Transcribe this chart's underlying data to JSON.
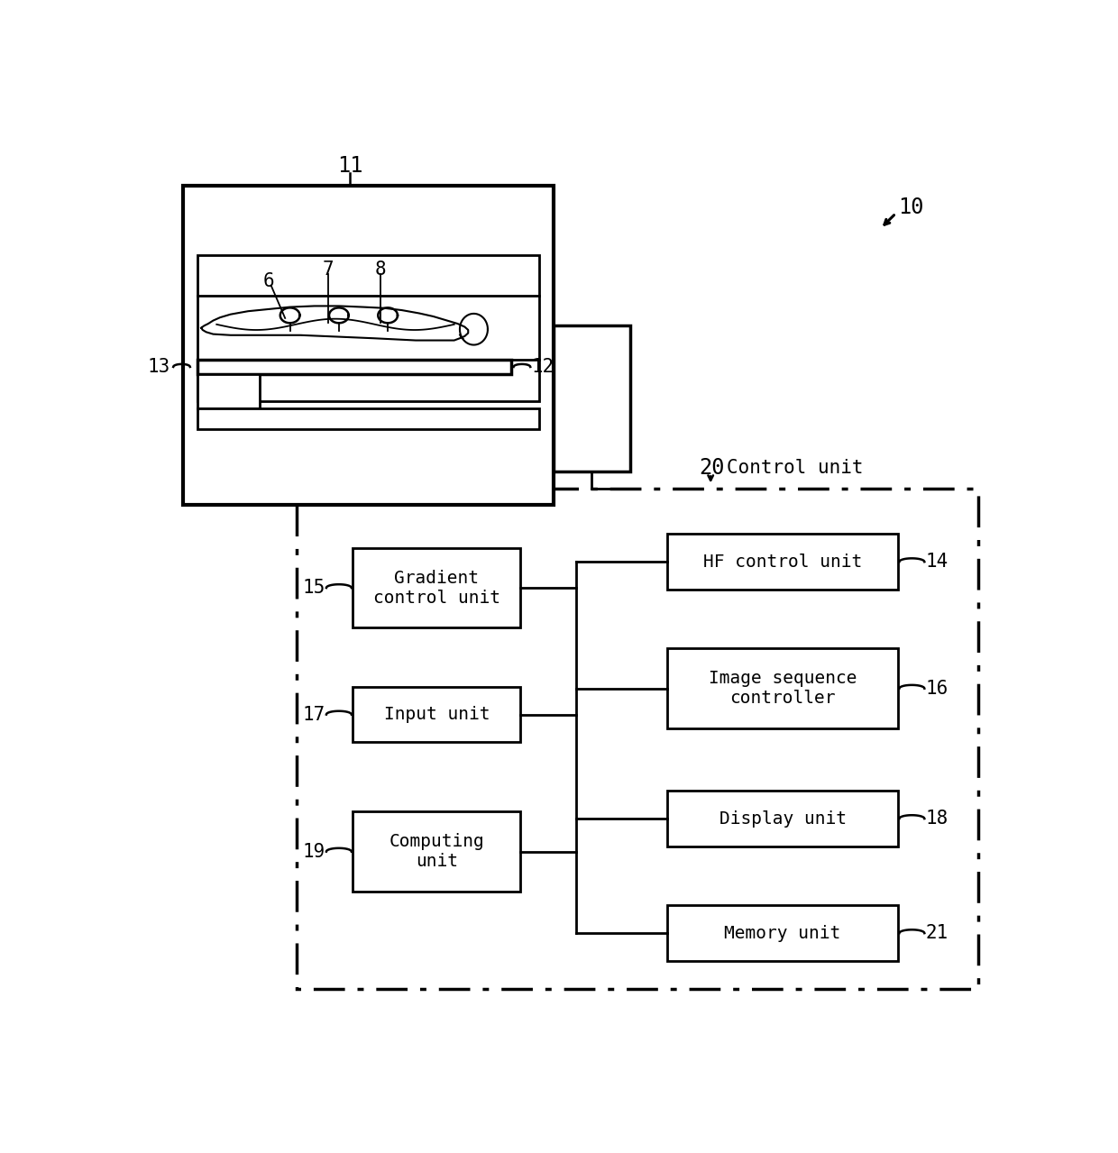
{
  "bg_color": "#ffffff",
  "lc": "#000000",
  "figsize": [
    12.4,
    12.79
  ],
  "dpi": 100,
  "labels": {
    "6": "6",
    "7": "7",
    "8": "8",
    "10": "10",
    "11": "11",
    "12": "12",
    "13": "13",
    "14": "14",
    "15": "15",
    "16": "16",
    "17": "17",
    "18": "18",
    "19": "19",
    "20": "20",
    "21": "21"
  },
  "control_text": "Control unit",
  "box_texts": {
    "14": "HF control unit",
    "15": "Gradient\ncontrol unit",
    "16": "Image sequence\ncontroller",
    "17": "Input unit",
    "18": "Display unit",
    "19": "Computing\nunit",
    "21": "Memory unit"
  }
}
